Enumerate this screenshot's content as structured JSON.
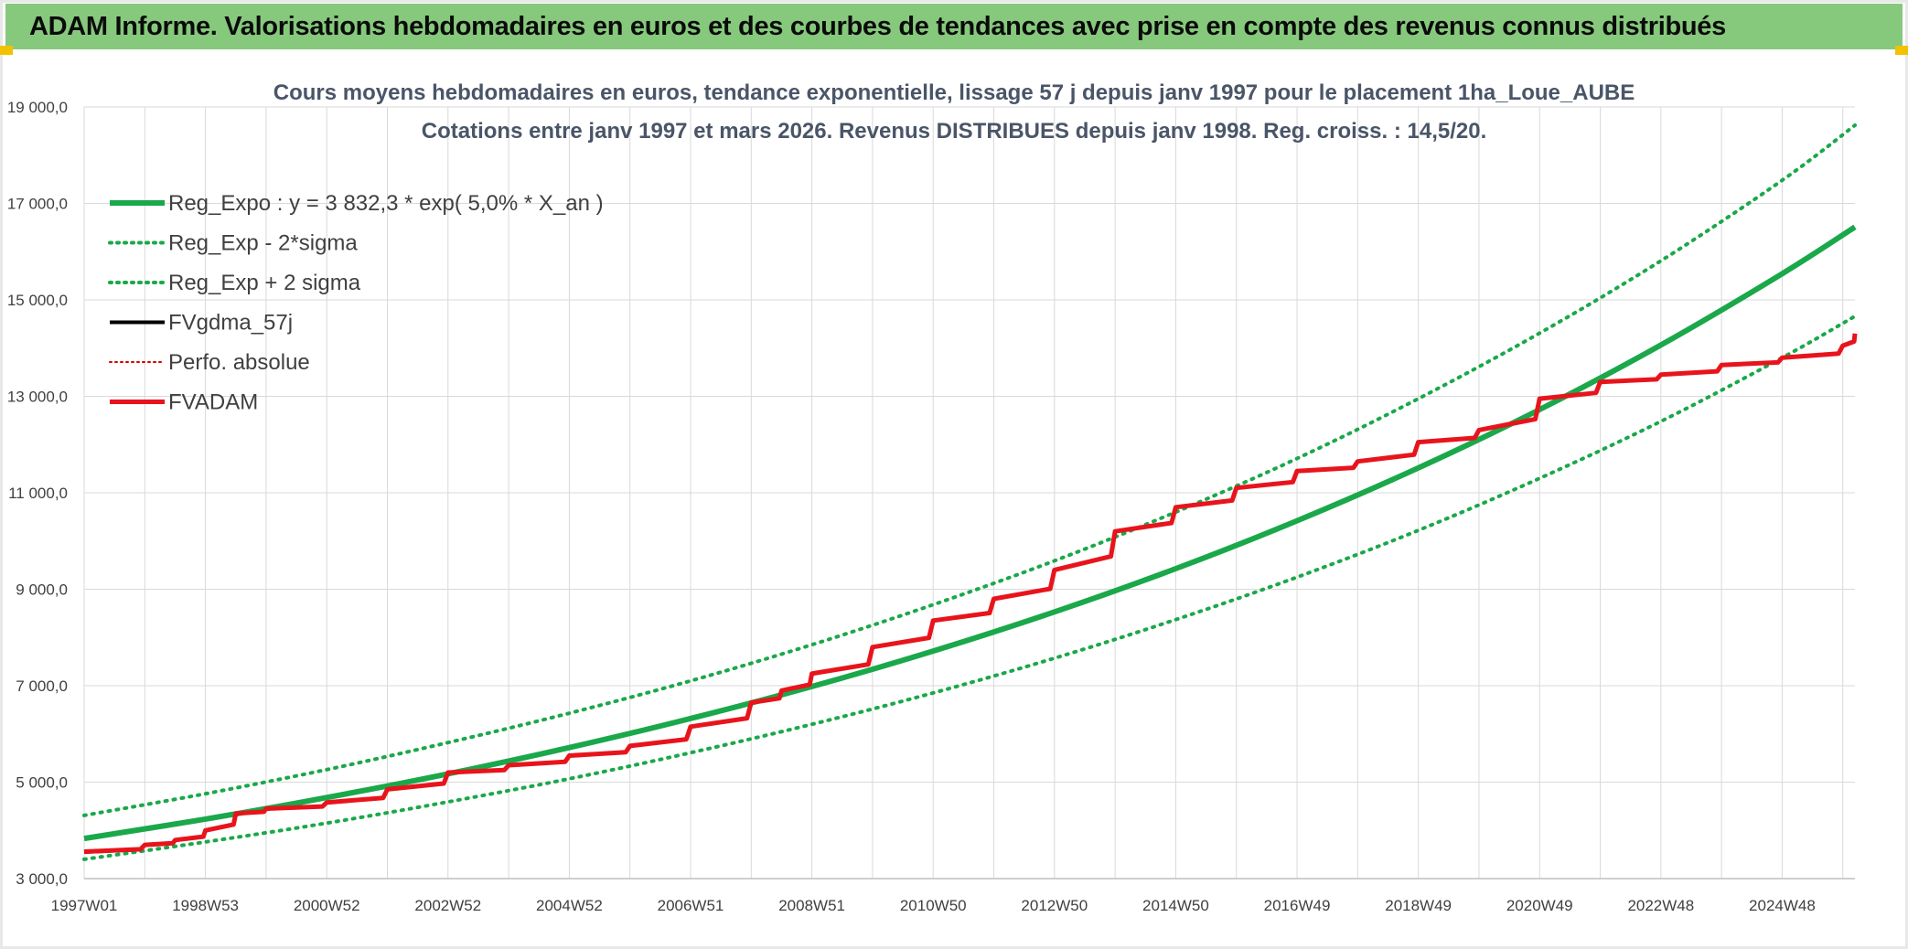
{
  "banner": {
    "title": "ADAM Informe. Valorisations hebdomadaires en euros et des courbes de tendances avec prise en compte des revenus connus distribués"
  },
  "colors": {
    "banner_bg": "#86c97c",
    "reg_expo": "#1aa84a",
    "sigma": "#1aa84a",
    "fvgdma": "#000000",
    "perfo": "#d40000",
    "fvadam": "#e8141c",
    "grid": "#d9d9d9",
    "axis_text": "#404040",
    "title_text": "#4a5568"
  },
  "chart_data": {
    "type": "line",
    "title_line1": "Cours moyens hebdomadaires en euros, tendance exponentielle, lissage 57 j depuis janv 1997 pour le placement 1ha_Loue_AUBE",
    "title_line2": "Cotations entre janv 1997 et mars 2026. Revenus DISTRIBUES depuis janv 1998. Reg. croiss. : 14,5/20.",
    "xlabel": "",
    "ylabel": "",
    "x_range": [
      1997.0,
      2026.2
    ],
    "ylim": [
      3000,
      19000
    ],
    "y_ticks": [
      3000,
      5000,
      7000,
      9000,
      11000,
      13000,
      15000,
      17000,
      19000
    ],
    "y_tick_labels": [
      "3 000,0",
      "5 000,0",
      "7 000,0",
      "9 000,0",
      "11 000,0",
      "13 000,0",
      "15 000,0",
      "17 000,0",
      "19 000,0"
    ],
    "x_ticks": [
      1997.0,
      1999.0,
      2001.0,
      2003.0,
      2005.0,
      2007.0,
      2009.0,
      2011.0,
      2013.0,
      2015.0,
      2017.0,
      2019.0,
      2021.0,
      2023.0,
      2025.0
    ],
    "x_tick_labels": [
      "1997W01",
      "1998W53",
      "2000W52",
      "2002W52",
      "2004W52",
      "2006W51",
      "2008W51",
      "2010W50",
      "2012W50",
      "2014W50",
      "2016W49",
      "2018W49",
      "2020W49",
      "2022W48",
      "2024W48"
    ],
    "grid": true,
    "legend_position": "top-left",
    "series": [
      {
        "name": "Reg_Expo : y = 3 832,3 * exp( 5,0% *  X_an )",
        "style": "solid-thick",
        "x": [
          1997.0,
          1999.0,
          2001.0,
          2003.0,
          2005.0,
          2007.0,
          2009.0,
          2011.0,
          2013.0,
          2015.0,
          2017.0,
          2019.0,
          2021.0,
          2023.0,
          2025.0,
          2026.2
        ],
        "values": [
          3832,
          4235,
          4681,
          5173,
          5717,
          6319,
          6983,
          7718,
          8530,
          9427,
          10419,
          11515,
          12726,
          14064,
          15543,
          16510
        ]
      },
      {
        "name": "Reg_Exp - 2*sigma",
        "style": "dotted",
        "x": [
          1997.0,
          1999.0,
          2001.0,
          2003.0,
          2005.0,
          2007.0,
          2009.0,
          2011.0,
          2013.0,
          2015.0,
          2017.0,
          2019.0,
          2021.0,
          2023.0,
          2025.0,
          2026.2
        ],
        "values": [
          3400,
          3760,
          4150,
          4590,
          5070,
          5610,
          6200,
          6850,
          7570,
          8370,
          9250,
          10220,
          11300,
          12480,
          13800,
          14660
        ]
      },
      {
        "name": "Reg_Exp + 2 sigma",
        "style": "dotted",
        "x": [
          1997.0,
          1999.0,
          2001.0,
          2003.0,
          2005.0,
          2007.0,
          2009.0,
          2011.0,
          2013.0,
          2015.0,
          2017.0,
          2019.0,
          2021.0,
          2023.0,
          2025.0,
          2026.2
        ],
        "values": [
          4310,
          4760,
          5260,
          5820,
          6430,
          7100,
          7850,
          8680,
          9590,
          10600,
          11710,
          12950,
          14310,
          15810,
          17480,
          18620
        ]
      },
      {
        "name": "FVgdma_57j",
        "style": "solid",
        "x": [
          1997.0,
          1998.0,
          1998.5,
          1999.0,
          1999.5,
          2000.0,
          2001.0,
          2002.0,
          2003.0,
          2004.0,
          2005.0,
          2006.0,
          2007.0,
          2008.0,
          2008.5,
          2009.0,
          2010.0,
          2011.0,
          2012.0,
          2013.0,
          2014.0,
          2015.0,
          2016.0,
          2017.0,
          2018.0,
          2019.0,
          2020.0,
          2021.0,
          2022.0,
          2023.0,
          2024.0,
          2025.0,
          2026.0,
          2026.2
        ],
        "values": [
          3550,
          3700,
          3800,
          4000,
          4350,
          4450,
          4580,
          4850,
          5200,
          5350,
          5550,
          5750,
          6150,
          6650,
          6900,
          7250,
          7800,
          8350,
          8800,
          9400,
          10200,
          10700,
          11100,
          11450,
          11650,
          12050,
          12300,
          12950,
          13300,
          13450,
          13650,
          13800,
          14050,
          14300
        ]
      },
      {
        "name": "Perfo. absolue",
        "style": "dotted-thin",
        "x": [
          1997.0,
          1998.0,
          1998.5,
          1999.0,
          1999.5,
          2000.0,
          2001.0,
          2002.0,
          2003.0,
          2004.0,
          2005.0,
          2006.0,
          2007.0,
          2008.0,
          2008.5,
          2009.0,
          2010.0,
          2011.0,
          2012.0,
          2013.0,
          2014.0,
          2015.0,
          2016.0,
          2017.0,
          2018.0,
          2019.0,
          2020.0,
          2021.0,
          2022.0,
          2023.0,
          2024.0,
          2025.0,
          2026.0,
          2026.2
        ],
        "values": [
          3560,
          3710,
          3800,
          3990,
          4340,
          4460,
          4590,
          4860,
          5210,
          5360,
          5560,
          5760,
          6160,
          6650,
          6890,
          7240,
          7790,
          8350,
          8810,
          9410,
          10210,
          10700,
          11110,
          11460,
          11650,
          12060,
          12310,
          12960,
          13310,
          13460,
          13650,
          13810,
          14060,
          14310
        ]
      },
      {
        "name": "FVADAM",
        "style": "solid-thick",
        "x": [
          1997.0,
          1998.0,
          1998.5,
          1999.0,
          1999.5,
          2000.0,
          2001.0,
          2002.0,
          2003.0,
          2004.0,
          2005.0,
          2006.0,
          2007.0,
          2008.0,
          2008.5,
          2009.0,
          2010.0,
          2011.0,
          2012.0,
          2013.0,
          2014.0,
          2015.0,
          2016.0,
          2017.0,
          2018.0,
          2019.0,
          2020.0,
          2021.0,
          2022.0,
          2023.0,
          2024.0,
          2025.0,
          2026.0,
          2026.2
        ],
        "values": [
          3560,
          3700,
          3800,
          4000,
          4350,
          4450,
          4580,
          4850,
          5200,
          5350,
          5550,
          5750,
          6150,
          6650,
          6900,
          7250,
          7800,
          8350,
          8800,
          9400,
          10200,
          10700,
          11100,
          11450,
          11650,
          12050,
          12300,
          12950,
          13300,
          13450,
          13650,
          13800,
          14050,
          14300
        ]
      }
    ]
  }
}
